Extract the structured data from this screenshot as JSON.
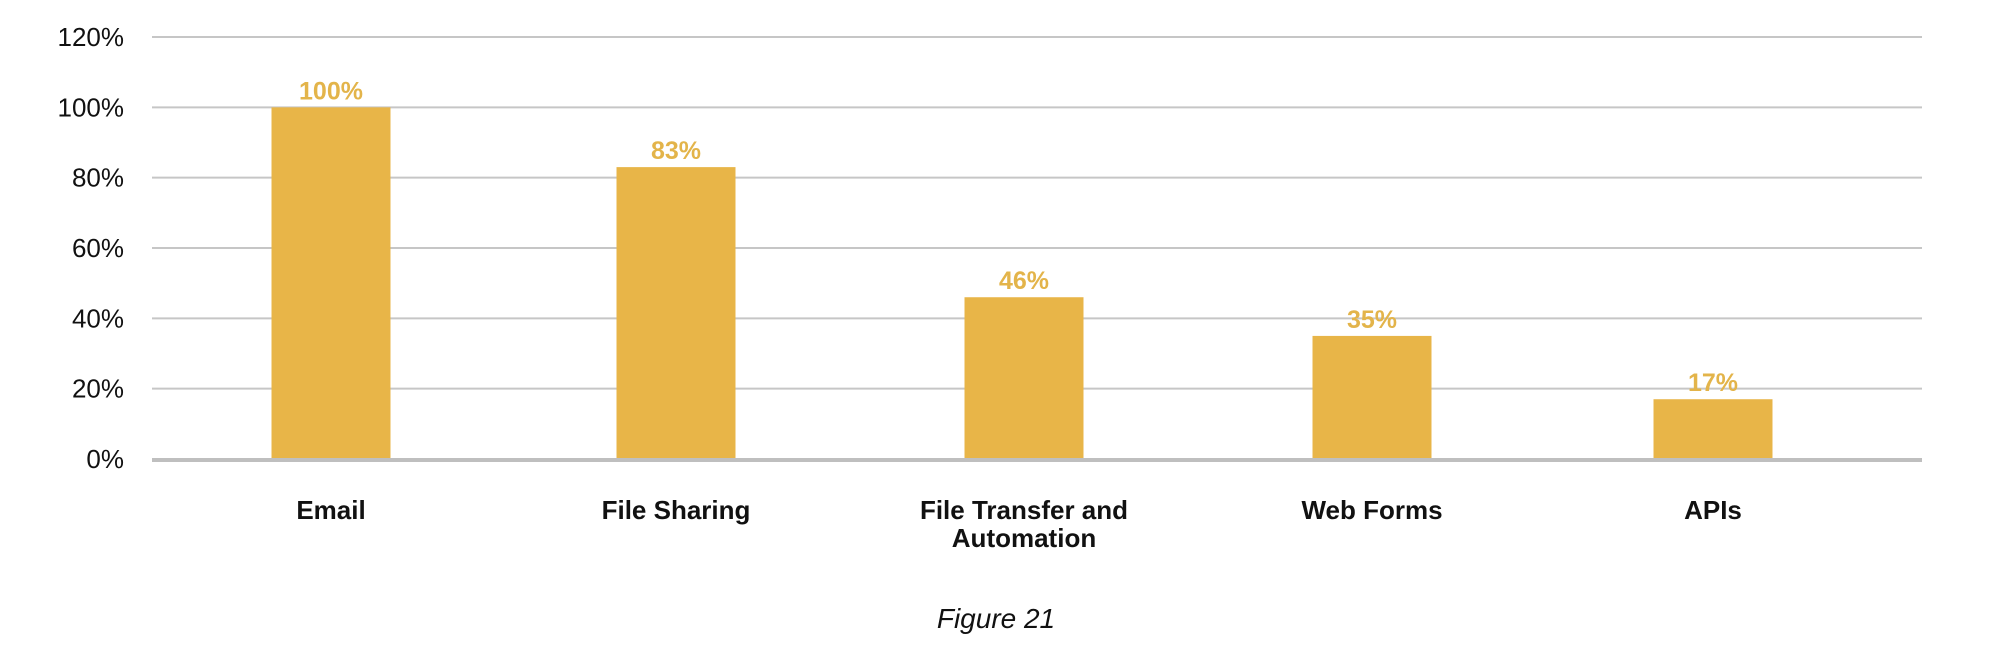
{
  "chart_data": {
    "type": "bar",
    "categories": [
      [
        "Email"
      ],
      [
        "File Sharing"
      ],
      [
        "File Transfer and",
        "Automation"
      ],
      [
        "Web Forms"
      ],
      [
        "APIs"
      ]
    ],
    "values": [
      100,
      83,
      46,
      35,
      17
    ],
    "data_labels": [
      "100%",
      "83%",
      "46%",
      "35%",
      "17%"
    ],
    "y_ticks": [
      "0%",
      "20%",
      "40%",
      "60%",
      "80%",
      "100%",
      "120%"
    ],
    "ylim": [
      0,
      120
    ],
    "grid": true,
    "legend": "none",
    "colors": {
      "bar": "#E8B548",
      "data_label": "#E3B44A",
      "grid": "#C6C6C6",
      "axis": "#BFBFBF"
    }
  },
  "caption": "Figure 21"
}
